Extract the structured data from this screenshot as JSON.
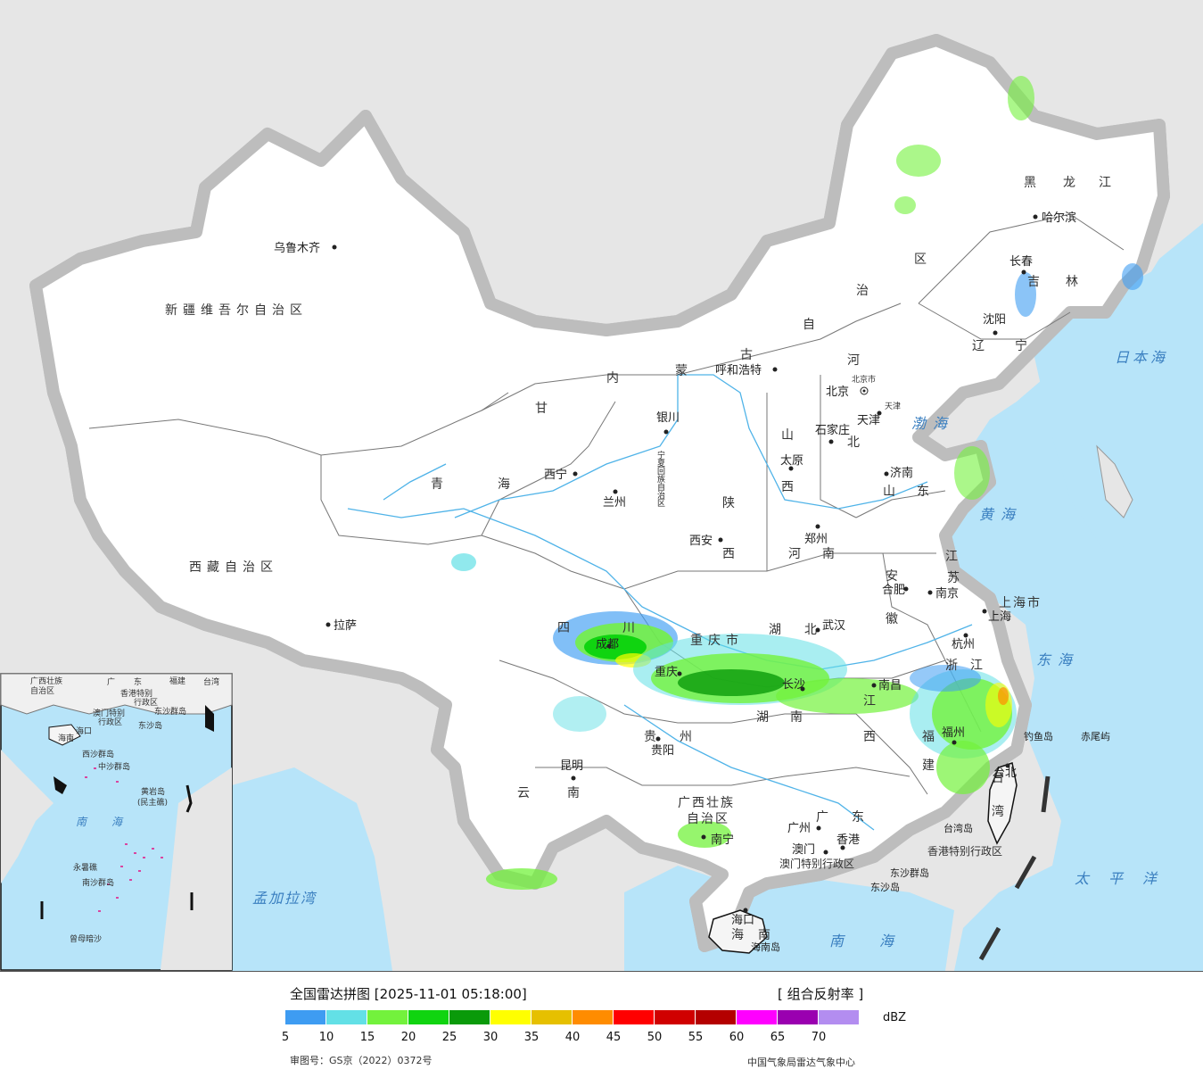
{
  "legend": {
    "title": "全国雷达拼图 [2025-11-01 05:18:00]",
    "product": "[ 组合反射率 ]",
    "unit": "dBZ",
    "approval": "审图号：GS京（2022）0372号",
    "agency": "中国气象局雷达气象中心",
    "scale": [
      {
        "value": "5",
        "color": "#3e9cf2"
      },
      {
        "value": "10",
        "color": "#63e0e6"
      },
      {
        "value": "15",
        "color": "#73f23c"
      },
      {
        "value": "20",
        "color": "#10d410"
      },
      {
        "value": "25",
        "color": "#0a9a0a"
      },
      {
        "value": "30",
        "color": "#ffff00"
      },
      {
        "value": "35",
        "color": "#e6c000"
      },
      {
        "value": "40",
        "color": "#ff8c00"
      },
      {
        "value": "45",
        "color": "#ff0000"
      },
      {
        "value": "50",
        "color": "#d00000"
      },
      {
        "value": "55",
        "color": "#b40000"
      },
      {
        "value": "60",
        "color": "#ff00ff"
      },
      {
        "value": "65",
        "color": "#9a00b0"
      },
      {
        "value": "70",
        "color": "#b38df0"
      }
    ]
  },
  "map": {
    "provinces": {
      "xinjiang": "新疆维吾尔自治区",
      "xizang": "西藏自治区",
      "qinghai1": "青",
      "qinghai2": "海",
      "gansu": "甘",
      "neimeng1": "内",
      "neimeng2": "蒙",
      "neimeng3": "古",
      "neimeng4": "自",
      "neimeng5": "治",
      "neimeng6": "区",
      "heilongjiang1": "黑",
      "heilongjiang2": "龙",
      "heilongjiang3": "江",
      "jilin1": "吉",
      "jilin2": "林",
      "liaoning1": "辽",
      "liaoning2": "宁",
      "hebei1": "河",
      "hebei2": "北",
      "shanxi1": "山",
      "shanxi2": "西",
      "shandong1": "山",
      "shandong2": "东",
      "shaanxi1": "陕",
      "shaanxi2": "西",
      "henan1": "河",
      "henan2": "南",
      "sichuan1": "四",
      "sichuan2": "川",
      "chongqing": "重庆市",
      "hubei1": "湖",
      "hubei2": "北",
      "hunan1": "湖",
      "hunan2": "南",
      "anhui1": "安",
      "anhui2": "徽",
      "jiangsu1": "江",
      "jiangsu2": "苏",
      "zhejiang1": "浙",
      "zhejiang2": "江",
      "jiangxi1": "江",
      "jiangxi2": "西",
      "fujian1": "福",
      "fujian2": "建",
      "guizhou1": "贵",
      "guizhou2": "州",
      "yunnan1": "云",
      "yunnan2": "南",
      "guangxi1": "广西壮族",
      "guangxi2": "自治区",
      "guangdong1": "广",
      "guangdong2": "东",
      "hainan1": "海",
      "hainan2": "南",
      "taiwan1": "台",
      "taiwan2": "湾",
      "shanghai": "上海市",
      "ningxia": "宁夏回族自治区",
      "hk": "香港特别行政区",
      "macau": "澳门特别行政区"
    },
    "cities": {
      "urumqi": "乌鲁木齐",
      "lhasa": "拉萨",
      "xining": "西宁",
      "lanzhou": "兰州",
      "yinchuan": "银川",
      "hohhot": "呼和浩特",
      "harbin": "哈尔滨",
      "changchun": "长春",
      "shenyang": "沈阳",
      "beijing": "北京",
      "beijing_small": "北京市",
      "tianjin": "天津",
      "tianjin_small": "天津",
      "shijiazhuang": "石家庄",
      "taiyuan": "太原",
      "jinan": "济南",
      "zhengzhou": "郑州",
      "xian": "西安",
      "hefei": "合肥",
      "nanjing": "南京",
      "shanghai": "上海",
      "hangzhou": "杭州",
      "wuhan": "武汉",
      "chengdu": "成都",
      "chongqing": "重庆",
      "changsha": "长沙",
      "nanchang": "南昌",
      "fuzhou": "福州",
      "guiyang": "贵阳",
      "kunming": "昆明",
      "nanning": "南宁",
      "guangzhou": "广州",
      "macau": "澳门",
      "hongkong": "香港",
      "haikou": "海口",
      "taipei": "台北",
      "diaoyu": "钓鱼岛",
      "chiwei": "赤尾屿",
      "dongsha_qd": "东沙群岛",
      "dongsha_d": "东沙岛",
      "taiwan_dao": "台湾岛",
      "hainan_dao": "海南岛"
    },
    "seas": {
      "bohai": "渤海",
      "huanghai": "黄海",
      "donghai": "东海",
      "nanhai": "南海",
      "taipingyang": "太平洋",
      "ribenhai": "日本海",
      "mengjiala": "孟加拉湾"
    },
    "inset": {
      "title1": "广西壮族",
      "title2": "自治区",
      "guang": "广",
      "dong": "东",
      "fujian": "福建",
      "taiwan": "台湾",
      "hk1": "香港特别",
      "hk2": "行政区",
      "macau1": "澳门特别",
      "macau2": "行政区",
      "dongsha1": "东沙群岛",
      "dongsha2": "东沙岛",
      "hainan": "海南",
      "haikou": "海口",
      "xisha1": "西沙群岛",
      "zhongsha": "中沙群岛",
      "huangyan1": "黄岩岛",
      "huangyan2": "(民主礁)",
      "nanhai1": "南",
      "nanhai2": "海",
      "yongshu": "永暑礁",
      "nansha": "南沙群岛",
      "zengmu": "曾母暗沙"
    }
  }
}
